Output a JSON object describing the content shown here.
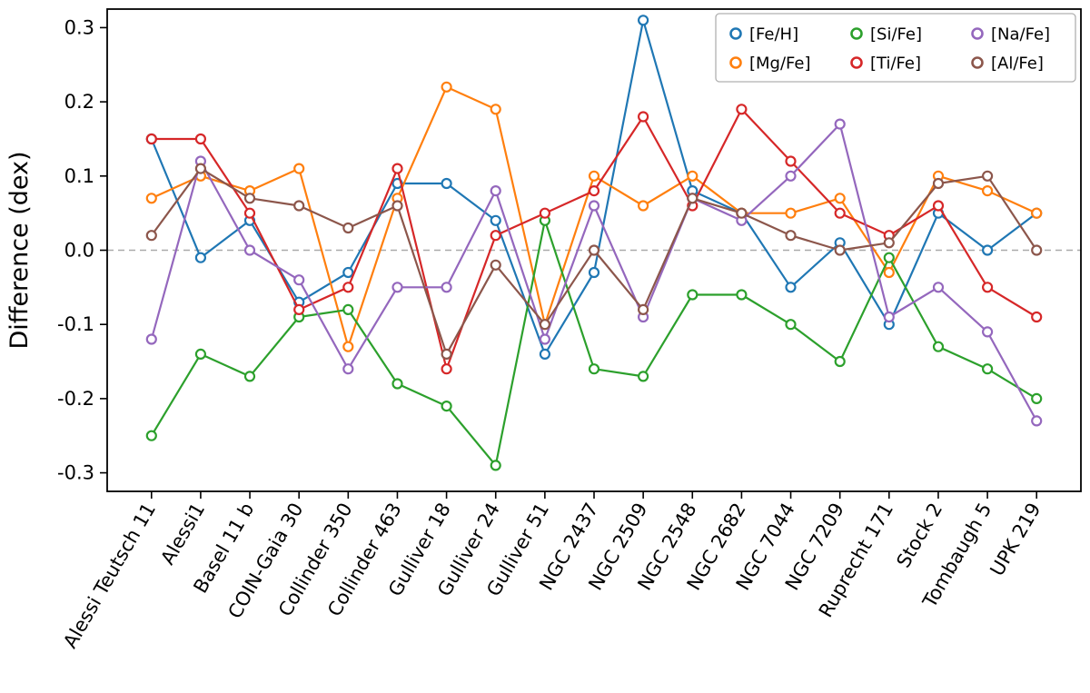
{
  "chart_data": {
    "type": "line",
    "title": "",
    "xlabel": "",
    "ylabel": "Difference (dex)",
    "ylim": [
      -0.325,
      0.325
    ],
    "yticks": [
      -0.3,
      -0.2,
      -0.1,
      0.0,
      0.1,
      0.2,
      0.3
    ],
    "grid": false,
    "zero_line": {
      "show": true,
      "color": "#aaaaaa",
      "style": "dashed"
    },
    "legend_position": "upper right",
    "marker": "open-circle",
    "categories": [
      "Alessi Teutsch 11",
      "Alessi1",
      "Basel 11 b",
      "COIN-Gaia 30",
      "Collinder 350",
      "Collinder 463",
      "Gulliver 18",
      "Gulliver 24",
      "Gulliver 51",
      "NGC 2437",
      "NGC 2509",
      "NGC 2548",
      "NGC 2682",
      "NGC 7044",
      "NGC 7209",
      "Ruprecht 171",
      "Stock 2",
      "Tombaugh 5",
      "UPK 219"
    ],
    "series": [
      {
        "name": "[Fe/H]",
        "color": "#1f77b4",
        "values": [
          0.15,
          -0.01,
          0.04,
          -0.07,
          -0.03,
          0.09,
          0.09,
          0.04,
          -0.14,
          -0.03,
          0.31,
          0.08,
          0.05,
          -0.05,
          0.01,
          -0.1,
          0.05,
          0.0,
          0.05
        ]
      },
      {
        "name": "[Mg/Fe]",
        "color": "#ff7f0e",
        "values": [
          0.07,
          0.1,
          0.08,
          0.11,
          -0.13,
          0.07,
          0.22,
          0.19,
          -0.1,
          0.1,
          0.06,
          0.1,
          0.05,
          0.05,
          0.07,
          -0.03,
          0.1,
          0.08,
          0.05
        ]
      },
      {
        "name": "[Si/Fe]",
        "color": "#2ca02c",
        "values": [
          -0.25,
          -0.14,
          -0.17,
          -0.09,
          -0.08,
          -0.18,
          -0.21,
          -0.29,
          0.04,
          -0.16,
          -0.17,
          -0.06,
          -0.06,
          -0.1,
          -0.15,
          -0.01,
          -0.13,
          -0.16,
          -0.2
        ]
      },
      {
        "name": "[Ti/Fe]",
        "color": "#d62728",
        "values": [
          0.15,
          0.15,
          0.05,
          -0.08,
          -0.05,
          0.11,
          -0.16,
          0.02,
          0.05,
          0.08,
          0.18,
          0.06,
          0.19,
          0.12,
          0.05,
          0.02,
          0.06,
          -0.05,
          -0.09
        ]
      },
      {
        "name": "[Na/Fe]",
        "color": "#9467bd",
        "values": [
          -0.12,
          0.12,
          0.0,
          -0.04,
          -0.16,
          -0.05,
          -0.05,
          0.08,
          -0.12,
          0.06,
          -0.09,
          0.07,
          0.04,
          0.1,
          0.17,
          -0.09,
          -0.05,
          -0.11,
          -0.23
        ]
      },
      {
        "name": "[Al/Fe]",
        "color": "#8c564b",
        "values": [
          0.02,
          0.11,
          0.07,
          0.06,
          0.03,
          0.06,
          -0.14,
          -0.02,
          -0.1,
          0.0,
          -0.08,
          0.07,
          0.05,
          0.02,
          0.0,
          0.01,
          0.09,
          0.1,
          0.0
        ]
      }
    ],
    "style": {
      "spine_color": "#000000",
      "tick_label_size": 21,
      "x_tick_rotation_deg": 60,
      "axis_label_size": 27,
      "legend_font_size": 18,
      "legend_border_color": "#b0b0b0",
      "line_width": 2.2,
      "marker_radius": 5
    }
  }
}
